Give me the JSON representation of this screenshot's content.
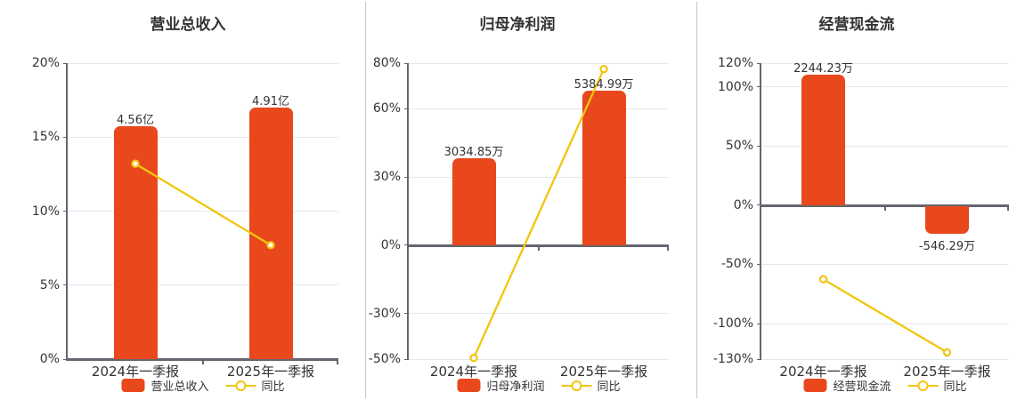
{
  "page": {
    "background": "#ffffff"
  },
  "colors": {
    "bar": "#e8481c",
    "line": "#f2c50f",
    "grid": "#e4e8f1",
    "axis": "#63666e",
    "text": "#333333",
    "divider": "#c6c6c6"
  },
  "chart_data": [
    {
      "type": "bar",
      "title": "营业总收入",
      "categories": [
        "2024年一季报",
        "2025年一季报"
      ],
      "bar_series": {
        "name": "营业总收入",
        "unit": "亿",
        "values": [
          4.56,
          4.91
        ],
        "value_labels": [
          "4.56亿",
          "4.91亿"
        ],
        "bar_top_pct": [
          15.75,
          17.0
        ]
      },
      "line_series": {
        "name": "同比",
        "values_pct": [
          13.2,
          7.7
        ]
      },
      "y_axis": {
        "range": [
          0,
          20
        ],
        "ticks": [
          20,
          15,
          10,
          5,
          0
        ],
        "tick_labels": [
          "20%",
          "15%",
          "10%",
          "5%",
          "0%"
        ]
      },
      "legend": [
        "营业总收入",
        "同比"
      ],
      "grid": true,
      "legend_position": "bottom"
    },
    {
      "type": "bar",
      "title": "归母净利润",
      "categories": [
        "2024年一季报",
        "2025年一季报"
      ],
      "bar_series": {
        "name": "归母净利润",
        "unit": "万",
        "values": [
          3034.85,
          5384.99
        ],
        "value_labels": [
          "3034.85万",
          "5384.99万"
        ],
        "bar_top_pct": [
          38.3,
          68.0
        ]
      },
      "line_series": {
        "name": "同比",
        "values_pct": [
          -49.5,
          77.4
        ]
      },
      "y_axis": {
        "range": [
          -50,
          80
        ],
        "ticks": [
          80,
          60,
          30,
          0,
          -30,
          -50
        ],
        "tick_labels": [
          "80%",
          "60%",
          "30%",
          "0%",
          "-30%",
          "-50%"
        ]
      },
      "legend": [
        "归母净利润",
        "同比"
      ],
      "grid": true,
      "legend_position": "bottom"
    },
    {
      "type": "bar",
      "title": "经营现金流",
      "categories": [
        "2024年一季报",
        "2025年一季报"
      ],
      "bar_series": {
        "name": "经营现金流",
        "unit": "万",
        "values": [
          2244.23,
          -546.29
        ],
        "value_labels": [
          "2244.23万",
          "-546.29万"
        ],
        "bar_top_pct": [
          110.2,
          -23.3
        ]
      },
      "line_series": {
        "name": "同比",
        "values_pct": [
          -62.5,
          -124.3
        ]
      },
      "y_axis": {
        "range": [
          -130,
          120
        ],
        "ticks": [
          120,
          100,
          50,
          0,
          -50,
          -100,
          -130
        ],
        "tick_labels": [
          "120%",
          "100%",
          "50%",
          "0%",
          "-50%",
          "-100%",
          "-130%"
        ]
      },
      "legend": [
        "经营现金流",
        "同比"
      ],
      "grid": true,
      "legend_position": "bottom"
    }
  ]
}
